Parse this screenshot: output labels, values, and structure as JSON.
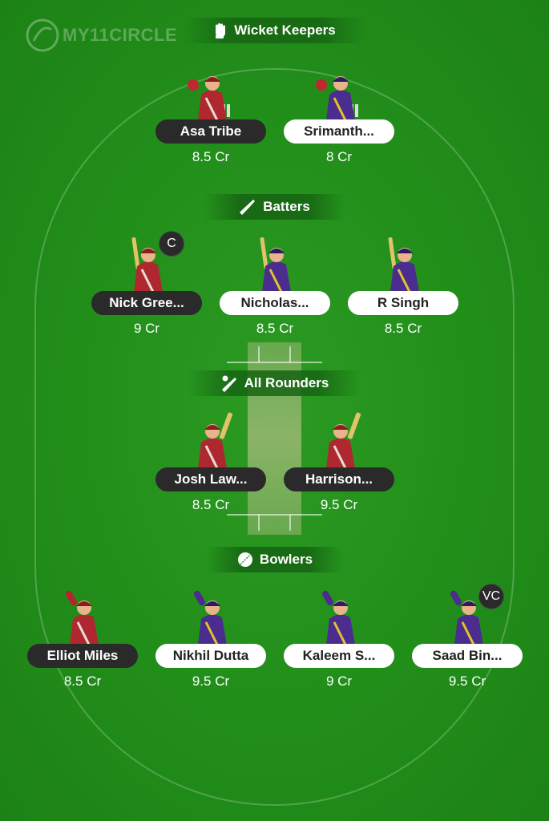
{
  "brand": {
    "logo_text": "MY11CIRCLE"
  },
  "colors": {
    "team_red": "#b0282f",
    "team_purple": "#4b2c8f",
    "pill_dark": "#2a2a2a",
    "pill_light": "#ffffff",
    "pitch": "#8fb06a"
  },
  "sections": {
    "wicket_keepers": {
      "label": "Wicket Keepers",
      "icon": "glove-icon"
    },
    "batters": {
      "label": "Batters",
      "icon": "bat-icon"
    },
    "all_rounders": {
      "label": "All Rounders",
      "icon": "bat-ball-icon"
    },
    "bowlers": {
      "label": "Bowlers",
      "icon": "ball-icon"
    }
  },
  "players": [
    {
      "name": "Asa Tribe",
      "credits": "8.5 Cr",
      "team": "red",
      "role": "wk"
    },
    {
      "name": "Srimanth...",
      "credits": "8 Cr",
      "team": "purple",
      "role": "wk"
    },
    {
      "name": "Nick Gree...",
      "credits": "9 Cr",
      "team": "red",
      "role": "bat",
      "badge": "C"
    },
    {
      "name": "Nicholas...",
      "credits": "8.5 Cr",
      "team": "purple",
      "role": "bat"
    },
    {
      "name": "R Singh",
      "credits": "8.5 Cr",
      "team": "purple",
      "role": "bat"
    },
    {
      "name": "Josh Law...",
      "credits": "8.5 Cr",
      "team": "red",
      "role": "ar"
    },
    {
      "name": "Harrison...",
      "credits": "9.5 Cr",
      "team": "red",
      "role": "ar"
    },
    {
      "name": "Elliot Miles",
      "credits": "8.5 Cr",
      "team": "red",
      "role": "bowl"
    },
    {
      "name": "Nikhil Dutta",
      "credits": "9.5 Cr",
      "team": "purple",
      "role": "bowl"
    },
    {
      "name": "Kaleem S...",
      "credits": "9 Cr",
      "team": "purple",
      "role": "bowl"
    },
    {
      "name": "Saad Bin...",
      "credits": "9.5 Cr",
      "team": "purple",
      "role": "bowl",
      "badge": "VC"
    }
  ]
}
